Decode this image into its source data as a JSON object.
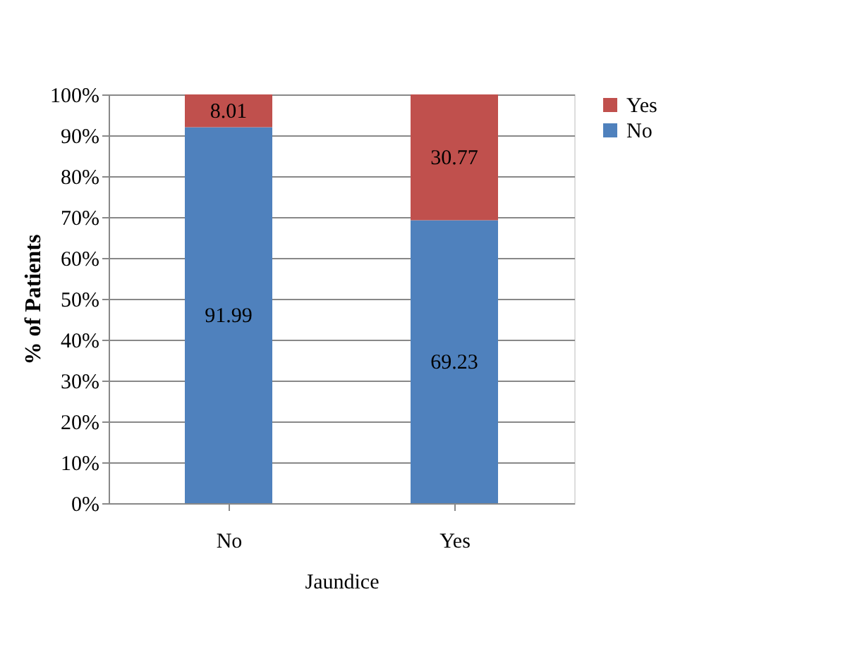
{
  "chart_data": {
    "type": "bar",
    "stacked": true,
    "xlabel": "Jaundice",
    "ylabel": "% of Patients",
    "categories": [
      "No",
      "Yes"
    ],
    "series": [
      {
        "name": "No",
        "color": "#4f81bd",
        "values": [
          91.99,
          69.23
        ]
      },
      {
        "name": "Yes",
        "color": "#c0504d",
        "values": [
          8.01,
          30.77
        ]
      }
    ],
    "ylim": [
      0,
      100
    ],
    "yticks": [
      {
        "value": 0,
        "label": "0%"
      },
      {
        "value": 10,
        "label": "10%"
      },
      {
        "value": 20,
        "label": "20%"
      },
      {
        "value": 30,
        "label": "30%"
      },
      {
        "value": 40,
        "label": "40%"
      },
      {
        "value": 50,
        "label": "50%"
      },
      {
        "value": 60,
        "label": "60%"
      },
      {
        "value": 70,
        "label": "70%"
      },
      {
        "value": 80,
        "label": "80%"
      },
      {
        "value": 90,
        "label": "90%"
      },
      {
        "value": 100,
        "label": "100%"
      }
    ],
    "grid": "y",
    "legend": "right",
    "data_labels": true
  }
}
